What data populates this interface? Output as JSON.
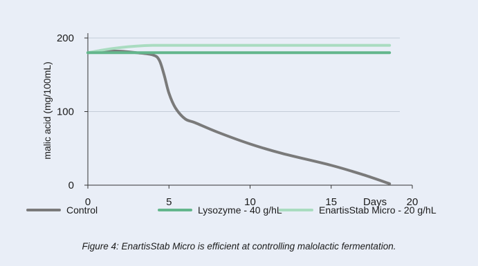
{
  "chart_data": {
    "type": "line",
    "title": "",
    "xlabel": "Days",
    "ylabel": "malic acid (mg/100mL)",
    "xlim": [
      0,
      20
    ],
    "ylim": [
      0,
      200
    ],
    "x_ticks": [
      0,
      5,
      10,
      15,
      20
    ],
    "y_ticks": [
      0,
      100,
      200
    ],
    "grid": "horizontal",
    "legend_position": "bottom",
    "series": [
      {
        "name": "Control",
        "color": "#7a7a7a",
        "x": [
          0,
          1,
          2,
          3,
          4,
          4.4,
          4.7,
          5.0,
          5.4,
          6.0,
          6.6,
          8,
          10,
          12,
          15,
          17,
          18.6
        ],
        "y": [
          180,
          182,
          182,
          180,
          177,
          170,
          150,
          125,
          105,
          90,
          85,
          72,
          56,
          43,
          27,
          14,
          2
        ]
      },
      {
        "name": "Lysozyme - 40 g/hL",
        "color": "#63b68c",
        "x": [
          0,
          1,
          2,
          5,
          10,
          15,
          18.6
        ],
        "y": [
          180,
          180,
          180,
          180,
          180,
          180,
          180
        ]
      },
      {
        "name": "EnartisStab Micro - 20 g/hL",
        "color": "#a9dcc0",
        "x": [
          0,
          1,
          2,
          3,
          4,
          5,
          10,
          15,
          18.6
        ],
        "y": [
          180,
          184,
          187,
          189,
          190,
          190,
          190,
          190,
          190
        ]
      }
    ]
  },
  "caption": "Figure 4: EnartisStab Micro is efficient at controlling malolactic fermentation."
}
